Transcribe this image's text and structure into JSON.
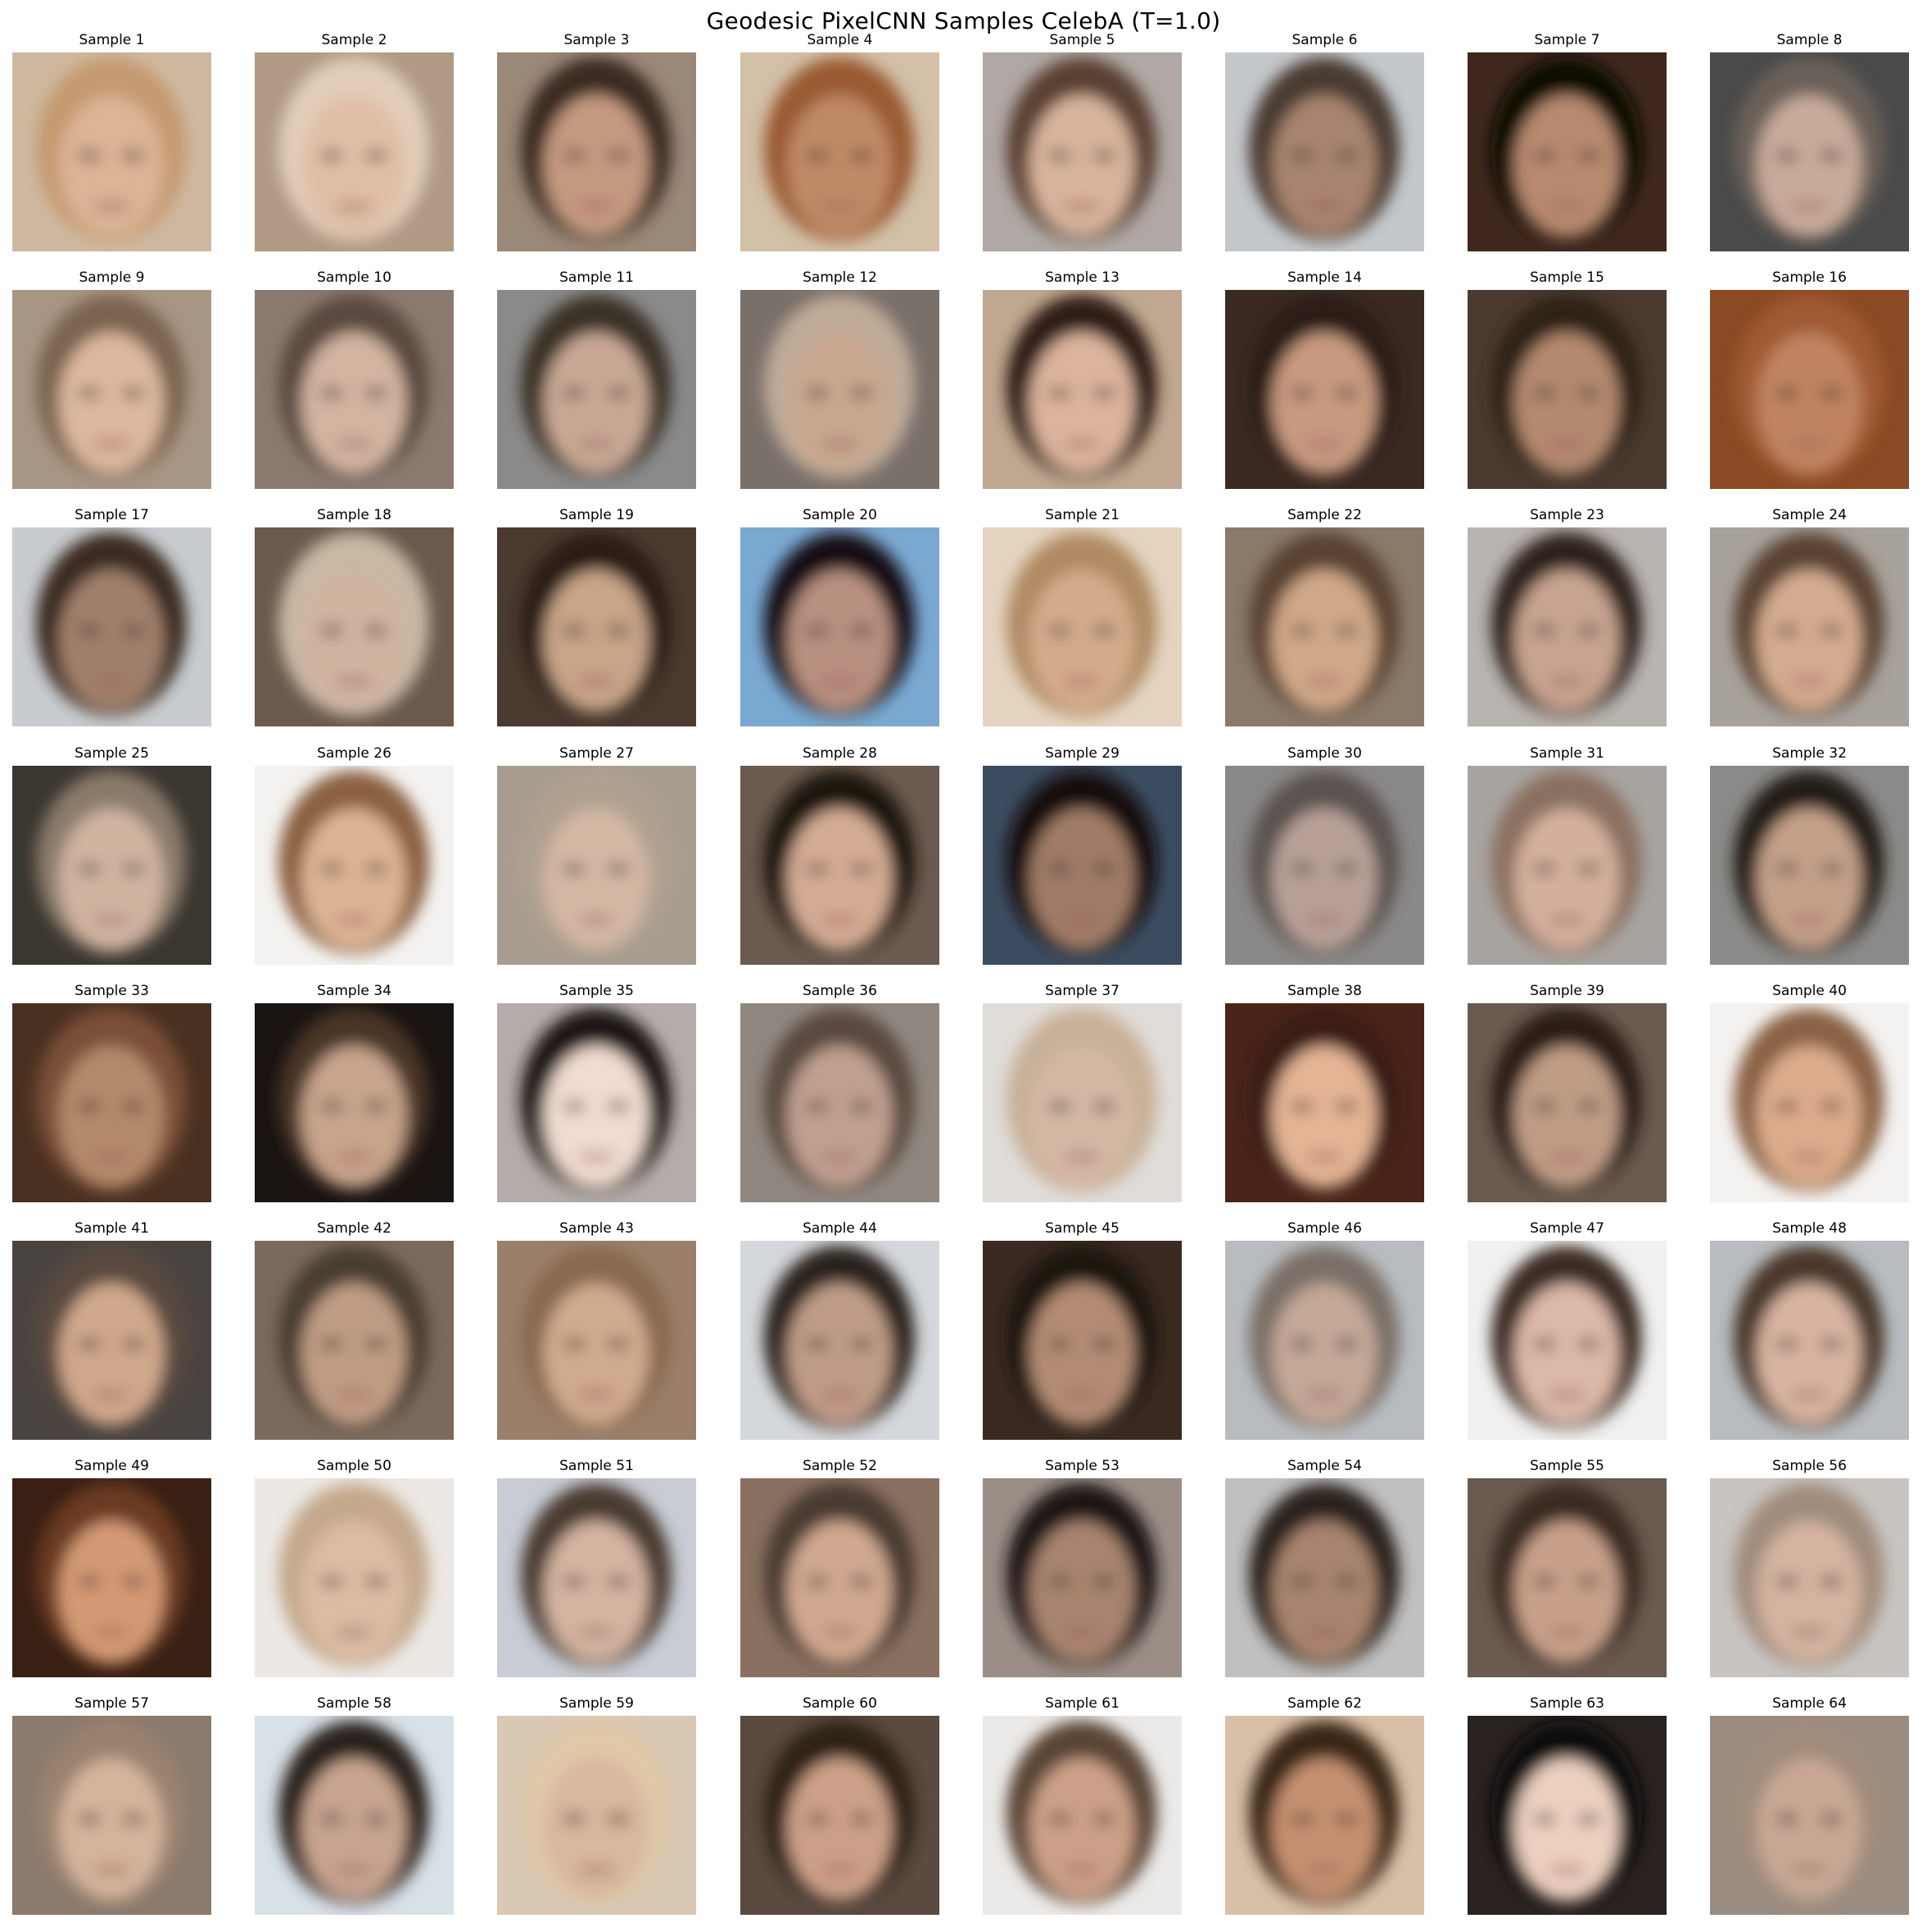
{
  "figure": {
    "title": "Geodesic PixelCNN Samples CelebA (T=1.0)"
  },
  "samples": [
    {
      "label": "Sample 1",
      "bg": "#cfb8a0",
      "hair": "#c49a70",
      "skin": "#dcb496"
    },
    {
      "label": "Sample 2",
      "bg": "#b09a86",
      "hair": "#e2cdba",
      "skin": "#e0bfa6"
    },
    {
      "label": "Sample 3",
      "bg": "#9a8878",
      "hair": "#3a2a22",
      "skin": "#c49a80"
    },
    {
      "label": "Sample 4",
      "bg": "#d2c0a8",
      "hair": "#9a5a30",
      "skin": "#c08a66"
    },
    {
      "label": "Sample 5",
      "bg": "#b0a8a4",
      "hair": "#5a4030",
      "skin": "#d8b49c"
    },
    {
      "label": "Sample 6",
      "bg": "#c4c8cc",
      "hair": "#4a3a30",
      "skin": "#a88470"
    },
    {
      "label": "Sample 7",
      "bg": "#40281e",
      "hair": "#100806",
      "skin": "#b88a70"
    },
    {
      "label": "Sample 8",
      "bg": "#4a4a4a",
      "hair": "#6a6058",
      "skin": "#c8aa9a"
    },
    {
      "label": "Sample 9",
      "bg": "#a89684",
      "hair": "#7a6450",
      "skin": "#dcb89e"
    },
    {
      "label": "Sample 10",
      "bg": "#8a7a70",
      "hair": "#5a4a40",
      "skin": "#d2b4a0"
    },
    {
      "label": "Sample 11",
      "bg": "#8a8a8a",
      "hair": "#3a3028",
      "skin": "#c8a894"
    },
    {
      "label": "Sample 12",
      "bg": "#7a706a",
      "hair": "#c0aa98",
      "skin": "#c8a890"
    },
    {
      "label": "Sample 13",
      "bg": "#c0a890",
      "hair": "#2e1e16",
      "skin": "#dcb49c"
    },
    {
      "label": "Sample 14",
      "bg": "#3a2a22",
      "hair": "#2a1c14",
      "skin": "#c89a80"
    },
    {
      "label": "Sample 15",
      "bg": "#4a3a30",
      "hair": "#2e2018",
      "skin": "#b48a70"
    },
    {
      "label": "Sample 16",
      "bg": "#8a4a24",
      "hair": "#a05a30",
      "skin": "#c08460"
    },
    {
      "label": "Sample 17",
      "bg": "#c8ccd0",
      "hair": "#3a2c24",
      "skin": "#a0806c"
    },
    {
      "label": "Sample 18",
      "bg": "#6a5a4c",
      "hair": "#c8b8a4",
      "skin": "#d0b4a0"
    },
    {
      "label": "Sample 19",
      "bg": "#4a3a30",
      "hair": "#2a1e18",
      "skin": "#c8a488"
    },
    {
      "label": "Sample 20",
      "bg": "#7aa8d0",
      "hair": "#141014",
      "skin": "#b89080"
    },
    {
      "label": "Sample 21",
      "bg": "#e4d4c0",
      "hair": "#b08a64",
      "skin": "#d4ac8c"
    },
    {
      "label": "Sample 22",
      "bg": "#8a7a6a",
      "hair": "#5a4232",
      "skin": "#d0a888"
    },
    {
      "label": "Sample 23",
      "bg": "#b8b4b0",
      "hair": "#2e241e",
      "skin": "#c8a490"
    },
    {
      "label": "Sample 24",
      "bg": "#a8a29c",
      "hair": "#5a4232",
      "skin": "#d4ac90"
    },
    {
      "label": "Sample 25",
      "bg": "#3a3630",
      "hair": "#8a7a6a",
      "skin": "#d0b4a0"
    },
    {
      "label": "Sample 26",
      "bg": "#f4f2f0",
      "hair": "#8a6040",
      "skin": "#dcb494"
    },
    {
      "label": "Sample 27",
      "bg": "#a89c90",
      "hair": "#b0a090",
      "skin": "#d4b8a4"
    },
    {
      "label": "Sample 28",
      "bg": "#6a5a50",
      "hair": "#1e1410",
      "skin": "#d4ac94"
    },
    {
      "label": "Sample 29",
      "bg": "#3c4c60",
      "hair": "#141010",
      "skin": "#a07c68"
    },
    {
      "label": "Sample 30",
      "bg": "#8a8888",
      "hair": "#5a5250",
      "skin": "#b8a098"
    },
    {
      "label": "Sample 31",
      "bg": "#a8a4a0",
      "hair": "#8a7060",
      "skin": "#d4b09c"
    },
    {
      "label": "Sample 32",
      "bg": "#8a8a88",
      "hair": "#221a16",
      "skin": "#c4a08a"
    },
    {
      "label": "Sample 33",
      "bg": "#4a3020",
      "hair": "#7a5038",
      "skin": "#b48a6c"
    },
    {
      "label": "Sample 34",
      "bg": "#1a1412",
      "hair": "#4a3428",
      "skin": "#c8a48c"
    },
    {
      "label": "Sample 35",
      "bg": "#b4aca8",
      "hair": "#1a1412",
      "skin": "#f0dcd0"
    },
    {
      "label": "Sample 36",
      "bg": "#908880",
      "hair": "#5a4a40",
      "skin": "#c0a090"
    },
    {
      "label": "Sample 37",
      "bg": "#e0dcd8",
      "hair": "#c8b098",
      "skin": "#d4b8a4"
    },
    {
      "label": "Sample 38",
      "bg": "#4a2418",
      "hair": "#3a1e14",
      "skin": "#e4b494"
    },
    {
      "label": "Sample 39",
      "bg": "#6a5a50",
      "hair": "#2a1e18",
      "skin": "#c09c86"
    },
    {
      "label": "Sample 40",
      "bg": "#f4f2f0",
      "hair": "#8a6244",
      "skin": "#dcac8c"
    },
    {
      "label": "Sample 41",
      "bg": "#4a4440",
      "hair": "#5a4a40",
      "skin": "#d0a88c"
    },
    {
      "label": "Sample 42",
      "bg": "#7a6a5c",
      "hair": "#4a3c32",
      "skin": "#c09c84"
    },
    {
      "label": "Sample 43",
      "bg": "#9a806a",
      "hair": "#8a6a50",
      "skin": "#d0aa8e"
    },
    {
      "label": "Sample 44",
      "bg": "#d4d8dc",
      "hair": "#2a201a",
      "skin": "#c09c88"
    },
    {
      "label": "Sample 45",
      "bg": "#3a2a22",
      "hair": "#1a120e",
      "skin": "#b48c74"
    },
    {
      "label": "Sample 46",
      "bg": "#b8bcc0",
      "hair": "#7a7068",
      "skin": "#c4a898"
    },
    {
      "label": "Sample 47",
      "bg": "#f0f0f0",
      "hair": "#3a2a22",
      "skin": "#dcb8a8"
    },
    {
      "label": "Sample 48",
      "bg": "#b8bcc0",
      "hair": "#4a382c",
      "skin": "#d8b4a0"
    },
    {
      "label": "Sample 49",
      "bg": "#3a2014",
      "hair": "#6a3a20",
      "skin": "#d49a74"
    },
    {
      "label": "Sample 50",
      "bg": "#ece8e4",
      "hair": "#c4a88c",
      "skin": "#dcbca4"
    },
    {
      "label": "Sample 51",
      "bg": "#c8ccd4",
      "hair": "#4a3a30",
      "skin": "#d4b4a0"
    },
    {
      "label": "Sample 52",
      "bg": "#8a7060",
      "hair": "#4a3a30",
      "skin": "#d0a890"
    },
    {
      "label": "Sample 53",
      "bg": "#9a8e86",
      "hair": "#1e1814",
      "skin": "#a88470"
    },
    {
      "label": "Sample 54",
      "bg": "#c0c0c0",
      "hair": "#2a221c",
      "skin": "#a88470"
    },
    {
      "label": "Sample 55",
      "bg": "#6a5a50",
      "hair": "#3a2c24",
      "skin": "#c8a08a"
    },
    {
      "label": "Sample 56",
      "bg": "#c8c4c0",
      "hair": "#a08c7c",
      "skin": "#d4b4a0"
    },
    {
      "label": "Sample 57",
      "bg": "#8a7a6c",
      "hair": "#9a8270",
      "skin": "#d4b49c"
    },
    {
      "label": "Sample 58",
      "bg": "#d8e0e8",
      "hair": "#2a221e",
      "skin": "#c8a490"
    },
    {
      "label": "Sample 59",
      "bg": "#d8c8b4",
      "hair": "#e0c8a8",
      "skin": "#d8b89e"
    },
    {
      "label": "Sample 60",
      "bg": "#5a4a40",
      "hair": "#2e2018",
      "skin": "#cca088"
    },
    {
      "label": "Sample 61",
      "bg": "#eceae8",
      "hair": "#5a4434",
      "skin": "#cca088"
    },
    {
      "label": "Sample 62",
      "bg": "#d8c0a8",
      "hair": "#3a2618",
      "skin": "#c49070"
    },
    {
      "label": "Sample 63",
      "bg": "#2a2220",
      "hair": "#0e0a0a",
      "skin": "#ecd0c0"
    },
    {
      "label": "Sample 64",
      "bg": "#9a8c80",
      "hair": "#a08c7c",
      "skin": "#c8a894"
    }
  ]
}
